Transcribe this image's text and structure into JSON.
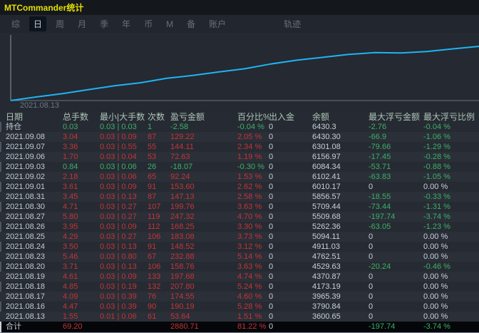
{
  "window": {
    "title": "MTCommander统计"
  },
  "tabs": [
    {
      "label": "综",
      "active": false
    },
    {
      "label": "日",
      "active": true
    },
    {
      "label": "周",
      "active": false
    },
    {
      "label": "月",
      "active": false
    },
    {
      "label": "季",
      "active": false
    },
    {
      "label": "年",
      "active": false
    },
    {
      "label": "币",
      "active": false
    },
    {
      "label": "M",
      "active": false
    },
    {
      "label": "备",
      "active": false
    },
    {
      "label": "账户",
      "active": false
    },
    {
      "label": "轨迹",
      "active": false,
      "gap_before": true
    }
  ],
  "chart_data": {
    "type": "line",
    "title": "",
    "xlabel": "",
    "ylabel": "余额",
    "x_start_label": "2021.08.13",
    "line_color": "#1FB4F0",
    "grid": false,
    "legend": false,
    "ylim": [
      3550,
      7150
    ],
    "x": [
      "2021.08.13",
      "2021.08.16",
      "2021.08.17",
      "2021.08.18",
      "2021.08.19",
      "2021.08.20",
      "2021.08.23",
      "2021.08.24",
      "2021.08.25",
      "2021.08.26",
      "2021.08.27",
      "2021.08.30",
      "2021.08.31",
      "2021.09.01",
      "2021.09.02",
      "2021.09.03",
      "2021.09.06",
      "2021.09.07",
      "2021.09.08"
    ],
    "values": [
      3600.65,
      3790.84,
      3965.39,
      4173.19,
      4370.87,
      4529.63,
      4762.51,
      4911.03,
      5094.11,
      5262.36,
      5509.68,
      5709.44,
      5856.57,
      6010.17,
      6102.41,
      6084.34,
      6156.97,
      6301.08,
      6430.3
    ]
  },
  "table": {
    "columns": [
      "日期",
      "总手数",
      "最小|大手数",
      "次数",
      "盈亏金额",
      "百分比%",
      "出入金",
      "余额",
      "最大浮亏金额",
      "最大浮亏比例"
    ],
    "rows": [
      {
        "trend": "down",
        "cells": [
          "持仓",
          "0.03",
          "0.03 | 0.03",
          "1",
          "-2.58",
          "-0.04 %",
          "0",
          "6430.3",
          "-2.76",
          "-0.04 %"
        ]
      },
      {
        "trend": "up",
        "cells": [
          "2021.09.08",
          "3.04",
          "0.03 | 0.09",
          "87",
          "129.22",
          "2.05 %",
          "0",
          "6430.30",
          "-66.9",
          "-1.06 %"
        ]
      },
      {
        "trend": "up",
        "cells": [
          "2021.09.07",
          "3.36",
          "0.03 | 0.55",
          "55",
          "144.11",
          "2.34 %",
          "0",
          "6301.08",
          "-79.66",
          "-1.29 %"
        ]
      },
      {
        "trend": "up",
        "cells": [
          "2021.09.06",
          "1.70",
          "0.03 | 0.04",
          "53",
          "72.63",
          "1.19 %",
          "0",
          "6156.97",
          "-17.45",
          "-0.28 %"
        ]
      },
      {
        "trend": "down",
        "cells": [
          "2021.09.03",
          "0.84",
          "0.03 | 0.06",
          "26",
          "-18.07",
          "-0.30 %",
          "0",
          "6084.34",
          "-53.71",
          "-0.88 %"
        ]
      },
      {
        "trend": "up",
        "cells": [
          "2021.09.02",
          "2.18",
          "0.03 | 0.06",
          "65",
          "92.24",
          "1.53 %",
          "0",
          "6102.41",
          "-63.83",
          "-1.05 %"
        ]
      },
      {
        "trend": "up",
        "cells": [
          "2021.09.01",
          "3.61",
          "0.03 | 0.09",
          "91",
          "153.60",
          "2.62 %",
          "0",
          "6010.17",
          "0",
          "0.00 %"
        ]
      },
      {
        "trend": "up",
        "cells": [
          "2021.08.31",
          "3.45",
          "0.03 | 0.13",
          "87",
          "147.13",
          "2.58 %",
          "0",
          "5856.57",
          "-18.55",
          "-0.33 %"
        ]
      },
      {
        "trend": "up",
        "cells": [
          "2021.08.30",
          "4.71",
          "0.03 | 0.27",
          "107",
          "199.76",
          "3.63 %",
          "0",
          "5709.44",
          "-73.44",
          "-1.31 %"
        ]
      },
      {
        "trend": "up",
        "cells": [
          "2021.08.27",
          "5.80",
          "0.03 | 0.27",
          "119",
          "247.32",
          "4.70 %",
          "0",
          "5509.68",
          "-197.74",
          "-3.74 %"
        ]
      },
      {
        "trend": "up",
        "cells": [
          "2021.08.26",
          "3.95",
          "0.03 | 0.09",
          "112",
          "168.25",
          "3.30 %",
          "0",
          "5262.36",
          "-63.05",
          "-1.23 %"
        ]
      },
      {
        "trend": "up",
        "cells": [
          "2021.08.25",
          "4.29",
          "0.03 | 0.27",
          "106",
          "183.08",
          "3.73 %",
          "0",
          "5094.11",
          "0",
          "0.00 %"
        ]
      },
      {
        "trend": "up",
        "cells": [
          "2021.08.24",
          "3.50",
          "0.03 | 0.13",
          "91",
          "148.52",
          "3.12 %",
          "0",
          "4911.03",
          "0",
          "0.00 %"
        ]
      },
      {
        "trend": "up",
        "cells": [
          "2021.08.23",
          "5.46",
          "0.03 | 0.80",
          "67",
          "232.88",
          "5.14 %",
          "0",
          "4762.51",
          "0",
          "0.00 %"
        ]
      },
      {
        "trend": "up",
        "cells": [
          "2021.08.20",
          "3.71",
          "0.03 | 0.13",
          "106",
          "158.76",
          "3.63 %",
          "0",
          "4529.63",
          "-20.24",
          "-0.46 %"
        ]
      },
      {
        "trend": "up",
        "cells": [
          "2021.08.19",
          "4.61",
          "0.03 | 0.09",
          "133",
          "197.68",
          "4.74 %",
          "0",
          "4370.87",
          "0",
          "0.00 %"
        ]
      },
      {
        "trend": "up",
        "cells": [
          "2021.08.18",
          "4.85",
          "0.03 | 0.19",
          "132",
          "207.80",
          "5.24 %",
          "0",
          "4173.19",
          "0",
          "0.00 %"
        ]
      },
      {
        "trend": "up",
        "cells": [
          "2021.08.17",
          "4.09",
          "0.03 | 0.39",
          "76",
          "174.55",
          "4.60 %",
          "0",
          "3965.39",
          "0",
          "0.00 %"
        ]
      },
      {
        "trend": "up",
        "cells": [
          "2021.08.16",
          "4.47",
          "0.03 | 0.39",
          "90",
          "190.19",
          "5.28 %",
          "0",
          "3790.84",
          "0",
          "0.00 %"
        ]
      },
      {
        "trend": "up",
        "cells": [
          "2021.08.13",
          "1.55",
          "0.01 | 0.06",
          "61",
          "53.64",
          "1.51 %",
          "0",
          "3600.65",
          "0",
          "0.00 %"
        ]
      },
      {
        "trend": "up",
        "is_total": true,
        "cells": [
          "合计",
          "69.20",
          "",
          "",
          "2880.71",
          "81.22 %",
          "0",
          "",
          "-197.74",
          "-3.74 %"
        ]
      }
    ]
  }
}
